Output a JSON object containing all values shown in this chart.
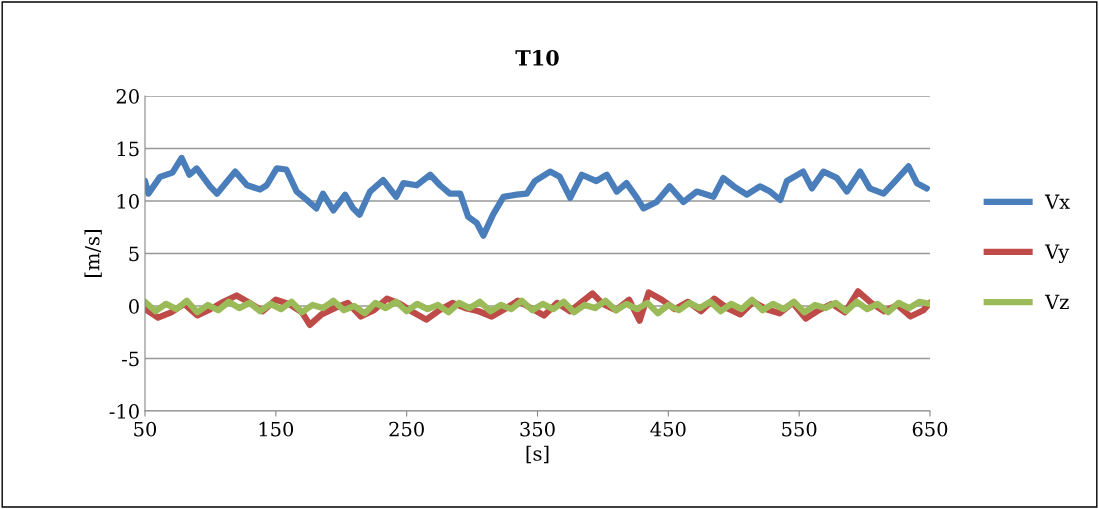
{
  "chart_data": {
    "type": "line",
    "title": "T10",
    "xlabel": "[s]",
    "ylabel": "[m/s]",
    "xlim": [
      50,
      650
    ],
    "xticks": [
      50,
      150,
      250,
      350,
      450,
      550,
      650
    ],
    "ylim": [
      -10,
      20
    ],
    "yticks": [
      -10,
      -5,
      0,
      5,
      10,
      15,
      20
    ],
    "grid": "y",
    "legend": "right",
    "marker": "none",
    "line_style": "solid",
    "series": [
      {
        "name": "Vx",
        "color": "#4a7ebb",
        "x": [
          50,
          52.6,
          61.5,
          71,
          78,
          84,
          89.5,
          99.7,
          105,
          119,
          128,
          138,
          143,
          150.7,
          158,
          166,
          173.6,
          181,
          186,
          194,
          203,
          209,
          214,
          222,
          232,
          242,
          247.5,
          257.7,
          268,
          275.5,
          283,
          291,
          297,
          303.6,
          308.6,
          316,
          324,
          334,
          341.8,
          348,
          359.6,
          367,
          375,
          383.9,
          395,
          403,
          410.6,
          418,
          426,
          431,
          441,
          451,
          461.5,
          471.8,
          484.5,
          492,
          500,
          510,
          520,
          527.8,
          535.5,
          540.6,
          553,
          559.7,
          568.6,
          578.8,
          586.5,
          596.6,
          604,
          614.5,
          622,
          633.6,
          640,
          647.6
        ],
        "values": [
          11.9,
          10.7,
          12.3,
          12.7,
          14.1,
          12.5,
          13.1,
          11.4,
          10.7,
          12.8,
          11.5,
          11.1,
          11.5,
          13.1,
          13.0,
          10.9,
          10.1,
          9.3,
          10.7,
          9.1,
          10.6,
          9.3,
          8.7,
          10.9,
          12.0,
          10.4,
          11.7,
          11.5,
          12.5,
          11.5,
          10.7,
          10.7,
          8.5,
          7.9,
          6.7,
          8.7,
          10.4,
          10.6,
          10.7,
          11.9,
          12.8,
          12.3,
          10.3,
          12.5,
          11.9,
          12.5,
          10.9,
          11.7,
          10.3,
          9.3,
          9.9,
          11.4,
          9.9,
          10.9,
          10.4,
          12.2,
          11.4,
          10.6,
          11.4,
          10.9,
          10.1,
          11.9,
          12.8,
          11.2,
          12.8,
          12.2,
          10.9,
          12.8,
          11.2,
          10.7,
          11.7,
          13.3,
          11.7,
          11.2
        ]
      },
      {
        "name": "Vy",
        "color": "#be4b48",
        "x": [
          50,
          60,
          70,
          80,
          90,
          100,
          110,
          120,
          130,
          140,
          150,
          160,
          170,
          176,
          185,
          195,
          205,
          215,
          225,
          235,
          245,
          255,
          265,
          275,
          285,
          295,
          305,
          315,
          325,
          335,
          345,
          355,
          365,
          375,
          385,
          392,
          400,
          410,
          420,
          428,
          435,
          445,
          455,
          465,
          475,
          485,
          495,
          505,
          515,
          525,
          535,
          545,
          555,
          565,
          575,
          585,
          595,
          605,
          615,
          625,
          635,
          645,
          650
        ],
        "values": [
          -0.3,
          -1.1,
          -0.6,
          0.2,
          -0.9,
          -0.3,
          0.4,
          1.0,
          0.3,
          -0.5,
          0.6,
          0.2,
          -0.6,
          -1.8,
          -0.8,
          -0.2,
          0.3,
          -1.0,
          -0.4,
          0.7,
          0.2,
          -0.6,
          -1.3,
          -0.4,
          0.3,
          -0.2,
          -0.5,
          -1.0,
          -0.3,
          0.5,
          -0.2,
          -0.9,
          0.3,
          -0.5,
          0.5,
          1.2,
          0.2,
          -0.4,
          0.6,
          -1.4,
          1.3,
          0.6,
          -0.3,
          0.4,
          -0.5,
          0.7,
          -0.2,
          -0.8,
          0.4,
          -0.3,
          -0.7,
          0.3,
          -1.2,
          -0.4,
          0.2,
          -0.6,
          1.4,
          0.3,
          -0.5,
          0.1,
          -1.0,
          -0.4,
          0.3
        ]
      },
      {
        "name": "Vz",
        "color": "#9bbb59",
        "x": [
          50,
          58,
          66,
          74,
          82,
          90,
          98,
          106,
          114,
          122,
          130,
          138,
          146,
          154,
          162,
          170,
          178,
          186,
          194,
          202,
          210,
          218,
          226,
          234,
          242,
          250,
          258,
          266,
          274,
          282,
          290,
          298,
          306,
          314,
          322,
          330,
          338,
          346,
          354,
          362,
          370,
          378,
          386,
          394,
          402,
          410,
          418,
          426,
          434,
          442,
          450,
          458,
          466,
          474,
          482,
          490,
          498,
          506,
          514,
          522,
          530,
          538,
          546,
          554,
          562,
          570,
          578,
          586,
          594,
          602,
          610,
          618,
          626,
          634,
          642,
          650
        ],
        "values": [
          0.4,
          -0.5,
          0.2,
          -0.3,
          0.5,
          -0.6,
          0.1,
          -0.4,
          0.4,
          -0.2,
          0.3,
          -0.5,
          0.2,
          -0.3,
          0.4,
          -0.6,
          0.1,
          -0.2,
          0.5,
          -0.4,
          0.0,
          -0.7,
          0.3,
          -0.2,
          0.4,
          -0.5,
          0.2,
          -0.3,
          0.1,
          -0.6,
          0.3,
          -0.2,
          0.4,
          -0.5,
          0.1,
          -0.3,
          0.5,
          -0.4,
          0.2,
          -0.3,
          0.4,
          -0.6,
          0.1,
          -0.2,
          0.5,
          -0.4,
          0.2,
          -0.3,
          0.3,
          -0.7,
          0.1,
          -0.4,
          0.3,
          -0.2,
          0.4,
          -0.5,
          0.2,
          -0.3,
          0.6,
          -0.4,
          0.2,
          -0.3,
          0.4,
          -0.6,
          0.1,
          -0.2,
          0.3,
          -0.5,
          0.4,
          -0.3,
          0.2,
          -0.6,
          0.3,
          -0.2,
          0.4,
          0.2
        ]
      }
    ]
  }
}
